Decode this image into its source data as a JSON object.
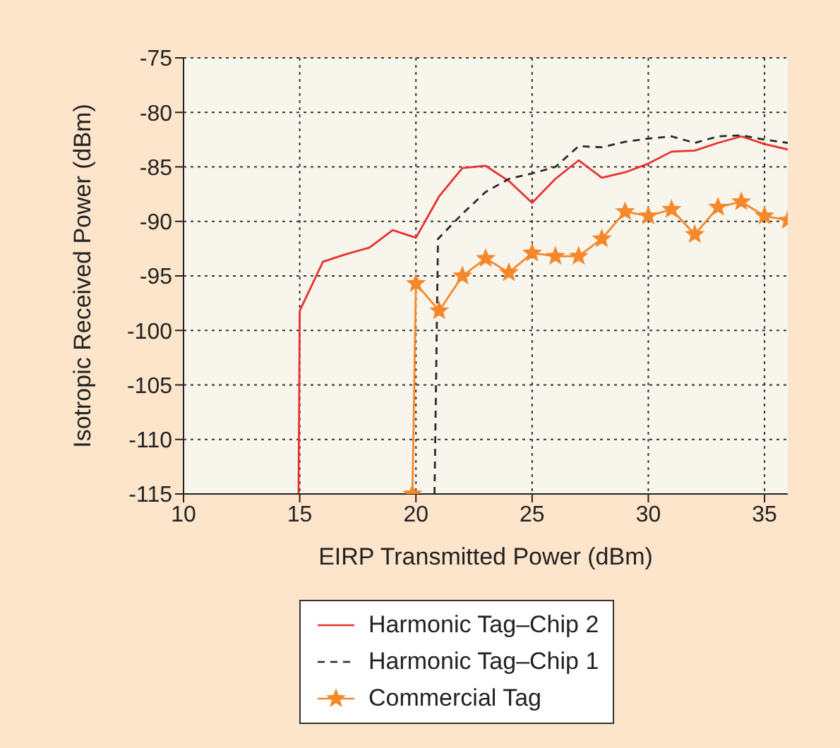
{
  "chart_data": {
    "type": "line",
    "xlabel": "EIRP Transmitted Power (dBm)",
    "ylabel": "Isotropic Received Power (dBm)",
    "xlim": [
      10,
      36
    ],
    "xticks": [
      10,
      15,
      20,
      25,
      30,
      35
    ],
    "ylim": [
      -115,
      -75
    ],
    "yticks": [
      -115,
      -110,
      -105,
      -100,
      -95,
      -90,
      -85,
      -80,
      -75
    ],
    "grid": true,
    "legend": "bottom",
    "series": [
      {
        "name": "Harmonic Tag–Chip 2",
        "color": "#e8322e",
        "line_style": "solid",
        "marker": "none",
        "x": [
          14.95,
          15,
          16,
          17,
          18,
          19,
          20,
          21,
          22,
          23,
          24,
          25,
          26,
          27,
          28,
          29,
          30,
          31,
          32,
          33,
          34,
          35,
          36
        ],
        "values": [
          -115,
          -98.2,
          -93.7,
          -93,
          -92.4,
          -90.8,
          -91.5,
          -87.7,
          -85.1,
          -84.9,
          -86.3,
          -88.3,
          -86.1,
          -84.4,
          -86,
          -85.5,
          -84.7,
          -83.6,
          -83.5,
          -82.8,
          -82.2,
          -82.9,
          -83.4
        ]
      },
      {
        "name": "Harmonic Tag–Chip 1",
        "color": "#2a2a2a",
        "line_style": "dashed",
        "marker": "none",
        "x": [
          20.8,
          20.95,
          22,
          23,
          24,
          25,
          26,
          27,
          28,
          29,
          30,
          31,
          32,
          33,
          34,
          35,
          36
        ],
        "values": [
          -115,
          -91.6,
          -89.3,
          -87.3,
          -86.1,
          -85.6,
          -85,
          -83.1,
          -83.2,
          -82.7,
          -82.4,
          -82.2,
          -82.8,
          -82.2,
          -82.1,
          -82.5,
          -82.8
        ]
      },
      {
        "name": "Commercial Tag",
        "color": "#f5882a",
        "line_style": "solid",
        "marker": "star",
        "x": [
          19.85,
          20,
          21,
          22,
          23,
          24,
          25,
          26,
          27,
          28,
          29,
          30,
          31,
          32,
          33,
          34,
          35,
          36
        ],
        "values": [
          -115,
          -95.7,
          -98.2,
          -95,
          -93.4,
          -94.7,
          -92.9,
          -93.2,
          -93.2,
          -91.6,
          -89.1,
          -89.5,
          -88.9,
          -91.2,
          -88.7,
          -88.2,
          -89.5,
          -89.9
        ]
      }
    ]
  }
}
